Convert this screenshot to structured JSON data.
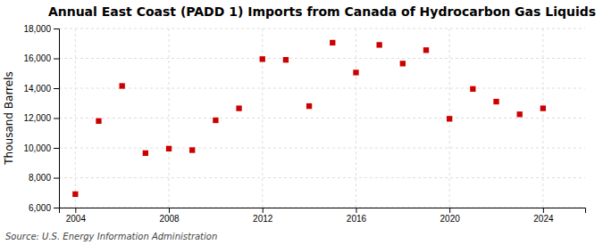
{
  "chart_data": {
    "type": "scatter",
    "title": "Annual East Coast (PADD 1) Imports from Canada of Hydrocarbon Gas Liquids",
    "ylabel": "Thousand Barrels",
    "annotations": [
      "Source: U.S. Energy Information Administration"
    ],
    "x": [
      2004,
      2005,
      2006,
      2007,
      2008,
      2009,
      2010,
      2011,
      2012,
      2013,
      2014,
      2015,
      2016,
      2017,
      2018,
      2019,
      2020,
      2021,
      2022,
      2023,
      2024
    ],
    "values": [
      6900,
      11800,
      14150,
      9650,
      9950,
      9850,
      11850,
      12650,
      15950,
      15900,
      12800,
      17050,
      15050,
      16900,
      15650,
      16550,
      11950,
      13950,
      13100,
      12250,
      12650
    ],
    "color": "#cc0000",
    "marker": "square",
    "xlim": [
      2003.3,
      2025.8
    ],
    "xticks": [
      2004,
      2008,
      2012,
      2016,
      2020,
      2024
    ],
    "ylim": [
      6000,
      18000
    ],
    "yticks": [
      {
        "value": 6000,
        "label": "6,000"
      },
      {
        "value": 8000,
        "label": "8,000"
      },
      {
        "value": 10000,
        "label": "10,000"
      },
      {
        "value": 12000,
        "label": "12,000"
      },
      {
        "value": 14000,
        "label": "14,000"
      },
      {
        "value": 16000,
        "label": "16,000"
      },
      {
        "value": 18000,
        "label": "18,000"
      }
    ],
    "grid": true
  }
}
